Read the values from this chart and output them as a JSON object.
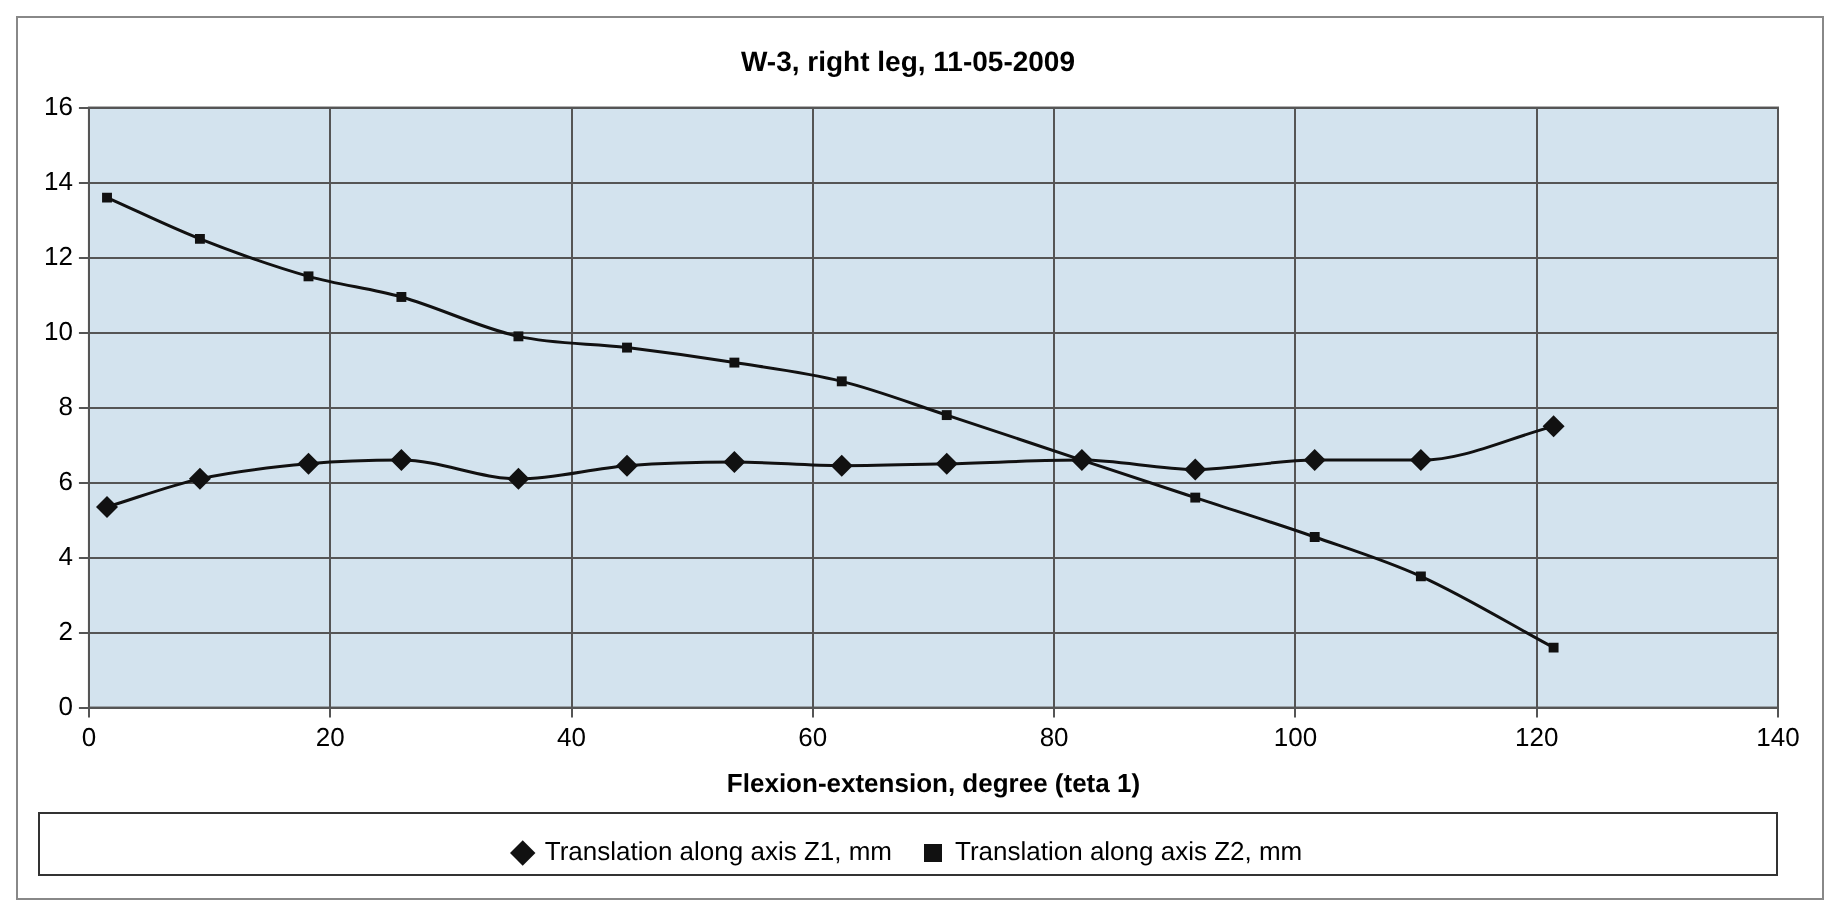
{
  "chart_data": {
    "type": "line",
    "title": "W-3, right leg, 11-05-2009",
    "xlabel": "Flexion-extension, degree (teta 1)",
    "xlim": [
      0,
      140
    ],
    "xticks": [
      0,
      20,
      40,
      60,
      80,
      100,
      120,
      140
    ],
    "ylim": [
      0,
      16
    ],
    "yticks": [
      0,
      2,
      4,
      6,
      8,
      10,
      12,
      14,
      16
    ],
    "grid": true,
    "legend": "bottom",
    "line_style": "solid",
    "x": [
      1.5,
      9.2,
      18.2,
      25.9,
      35.6,
      44.6,
      53.5,
      62.4,
      71.1,
      82.3,
      91.7,
      101.6,
      110.4,
      121.4
    ],
    "series": [
      {
        "name": "Translation along axis Z1, mm",
        "color": "#111111",
        "marker": "diamond",
        "values": [
          5.35,
          6.1,
          6.5,
          6.6,
          6.1,
          6.45,
          6.55,
          6.45,
          6.5,
          6.6,
          6.35,
          6.6,
          6.6,
          7.5
        ]
      },
      {
        "name": "Translation along axis Z2, mm",
        "color": "#111111",
        "marker": "square",
        "values": [
          13.6,
          12.5,
          11.5,
          10.95,
          9.9,
          9.6,
          9.2,
          8.7,
          7.8,
          6.6,
          5.6,
          4.55,
          3.5,
          1.6
        ]
      }
    ]
  }
}
